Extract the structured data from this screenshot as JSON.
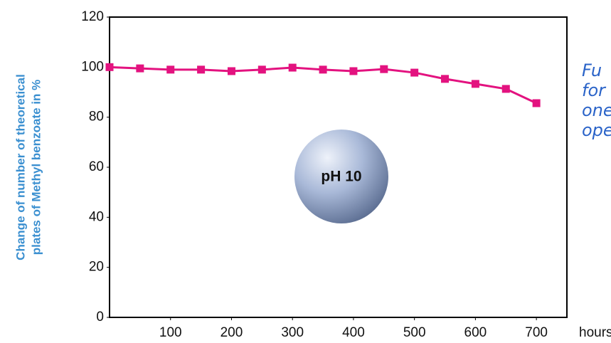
{
  "chart_data": {
    "type": "line",
    "y_label": [
      "Change of number of theoretical",
      "plates of Methyl benzoate in %"
    ],
    "x_unit": "hours",
    "badge": "pH 10",
    "annotation": [
      "Fu",
      "for",
      "one",
      "ope"
    ],
    "x": [
      0,
      50,
      100,
      150,
      200,
      250,
      300,
      350,
      400,
      450,
      500,
      550,
      600,
      650,
      700
    ],
    "series": [
      {
        "name": "Methyl benzoate",
        "color": "#e3127f",
        "values": [
          100,
          99.5,
          99,
          99,
          98.4,
          99,
          99.8,
          99,
          98.4,
          99.2,
          97.8,
          95.3,
          93.3,
          91.3,
          85.6
        ]
      }
    ],
    "xlim": [
      0,
      750
    ],
    "xticks": [
      100,
      200,
      300,
      400,
      500,
      600,
      700
    ],
    "ylim": [
      0,
      120
    ],
    "yticks": [
      0,
      20,
      40,
      60,
      80,
      100,
      120
    ]
  }
}
